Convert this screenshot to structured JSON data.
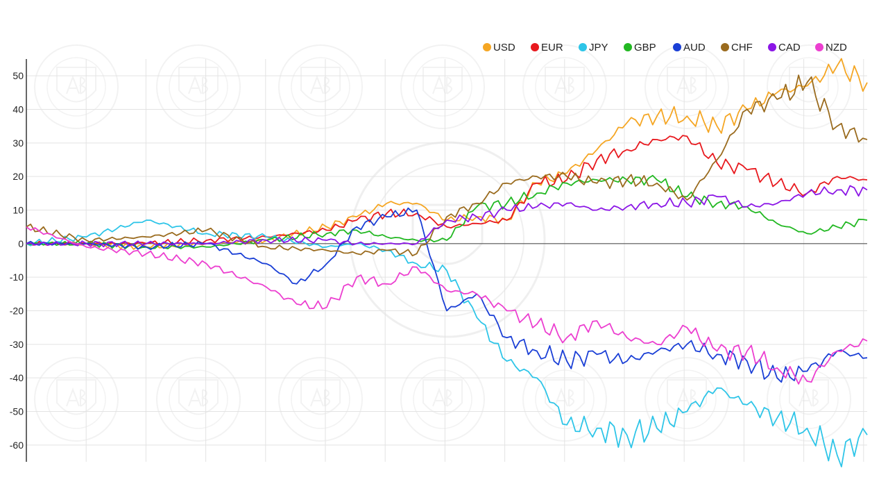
{
  "chart_data": {
    "type": "line",
    "title": "",
    "xlabel": "",
    "ylabel": "",
    "ylim": [
      -65,
      55
    ],
    "xlim": [
      0,
      140
    ],
    "grid": true,
    "legend_position": "top-right",
    "y_ticks": [
      50,
      40,
      30,
      20,
      10,
      0,
      -10,
      -20,
      -30,
      -40,
      -50,
      -60
    ],
    "series": [
      {
        "name": "USD",
        "color": "#f5a623",
        "points": [
          [
            0,
            0
          ],
          [
            10,
            0
          ],
          [
            20,
            -1
          ],
          [
            30,
            0
          ],
          [
            40,
            1
          ],
          [
            50,
            5
          ],
          [
            55,
            8
          ],
          [
            60,
            12
          ],
          [
            65,
            12
          ],
          [
            70,
            7
          ],
          [
            75,
            8
          ],
          [
            80,
            7
          ],
          [
            85,
            18
          ],
          [
            90,
            21
          ],
          [
            95,
            28
          ],
          [
            100,
            36
          ],
          [
            105,
            38
          ],
          [
            110,
            38
          ],
          [
            115,
            35
          ],
          [
            120,
            40
          ],
          [
            125,
            45
          ],
          [
            130,
            47
          ],
          [
            135,
            53
          ],
          [
            140,
            48
          ]
        ]
      },
      {
        "name": "EUR",
        "color": "#e8191e",
        "points": [
          [
            0,
            0
          ],
          [
            10,
            0
          ],
          [
            20,
            0
          ],
          [
            30,
            1
          ],
          [
            40,
            2
          ],
          [
            50,
            4
          ],
          [
            55,
            7
          ],
          [
            60,
            9
          ],
          [
            65,
            9
          ],
          [
            70,
            5
          ],
          [
            75,
            6
          ],
          [
            80,
            7
          ],
          [
            85,
            18
          ],
          [
            90,
            19
          ],
          [
            95,
            25
          ],
          [
            100,
            28
          ],
          [
            105,
            31
          ],
          [
            110,
            32
          ],
          [
            115,
            24
          ],
          [
            120,
            22
          ],
          [
            125,
            18
          ],
          [
            130,
            15
          ],
          [
            135,
            20
          ],
          [
            140,
            19
          ]
        ]
      },
      {
        "name": "JPY",
        "color": "#2ec5e8",
        "points": [
          [
            0,
            0
          ],
          [
            10,
            2
          ],
          [
            20,
            7
          ],
          [
            30,
            3
          ],
          [
            40,
            2
          ],
          [
            50,
            -1
          ],
          [
            55,
            0
          ],
          [
            60,
            -2
          ],
          [
            65,
            -6
          ],
          [
            70,
            -8
          ],
          [
            75,
            -22
          ],
          [
            80,
            -35
          ],
          [
            85,
            -40
          ],
          [
            90,
            -54
          ],
          [
            95,
            -55
          ],
          [
            100,
            -57
          ],
          [
            105,
            -55
          ],
          [
            110,
            -50
          ],
          [
            115,
            -43
          ],
          [
            120,
            -48
          ],
          [
            125,
            -52
          ],
          [
            130,
            -55
          ],
          [
            135,
            -63
          ],
          [
            140,
            -57
          ]
        ]
      },
      {
        "name": "GBP",
        "color": "#22b822",
        "points": [
          [
            0,
            0
          ],
          [
            10,
            0
          ],
          [
            20,
            -1
          ],
          [
            30,
            -1
          ],
          [
            40,
            1
          ],
          [
            50,
            3
          ],
          [
            55,
            4
          ],
          [
            60,
            2
          ],
          [
            65,
            1
          ],
          [
            70,
            1
          ],
          [
            75,
            11
          ],
          [
            80,
            12
          ],
          [
            85,
            15
          ],
          [
            90,
            18
          ],
          [
            95,
            19
          ],
          [
            100,
            19
          ],
          [
            105,
            19
          ],
          [
            110,
            14
          ],
          [
            115,
            12
          ],
          [
            120,
            11
          ],
          [
            125,
            6
          ],
          [
            130,
            3
          ],
          [
            135,
            5
          ],
          [
            140,
            7
          ]
        ]
      },
      {
        "name": "AUD",
        "color": "#1a3fd6",
        "points": [
          [
            0,
            0
          ],
          [
            10,
            0
          ],
          [
            20,
            -1
          ],
          [
            30,
            0
          ],
          [
            40,
            -6
          ],
          [
            45,
            -12
          ],
          [
            50,
            -6
          ],
          [
            55,
            5
          ],
          [
            60,
            8
          ],
          [
            65,
            10
          ],
          [
            70,
            -20
          ],
          [
            75,
            -15
          ],
          [
            80,
            -28
          ],
          [
            85,
            -32
          ],
          [
            90,
            -35
          ],
          [
            95,
            -33
          ],
          [
            100,
            -35
          ],
          [
            105,
            -32
          ],
          [
            110,
            -30
          ],
          [
            115,
            -33
          ],
          [
            120,
            -35
          ],
          [
            125,
            -40
          ],
          [
            130,
            -38
          ],
          [
            135,
            -32
          ],
          [
            140,
            -34
          ]
        ]
      },
      {
        "name": "CHF",
        "color": "#9a6b1e",
        "points": [
          [
            0,
            5
          ],
          [
            10,
            1
          ],
          [
            20,
            2
          ],
          [
            30,
            4
          ],
          [
            40,
            -1
          ],
          [
            50,
            -2
          ],
          [
            55,
            -3
          ],
          [
            60,
            -2
          ],
          [
            65,
            -3
          ],
          [
            70,
            8
          ],
          [
            75,
            12
          ],
          [
            80,
            18
          ],
          [
            85,
            20
          ],
          [
            90,
            20
          ],
          [
            95,
            18
          ],
          [
            100,
            19
          ],
          [
            105,
            18
          ],
          [
            110,
            13
          ],
          [
            115,
            25
          ],
          [
            120,
            40
          ],
          [
            125,
            43
          ],
          [
            130,
            48
          ],
          [
            135,
            35
          ],
          [
            140,
            31
          ]
        ]
      },
      {
        "name": "CAD",
        "color": "#8b16e6",
        "points": [
          [
            0,
            0
          ],
          [
            10,
            0
          ],
          [
            20,
            0
          ],
          [
            30,
            0
          ],
          [
            40,
            1
          ],
          [
            50,
            1
          ],
          [
            55,
            0
          ],
          [
            60,
            0
          ],
          [
            65,
            0
          ],
          [
            70,
            7
          ],
          [
            75,
            8
          ],
          [
            80,
            10
          ],
          [
            85,
            11
          ],
          [
            90,
            12
          ],
          [
            95,
            10
          ],
          [
            100,
            11
          ],
          [
            105,
            12
          ],
          [
            110,
            12
          ],
          [
            115,
            14
          ],
          [
            120,
            11
          ],
          [
            125,
            12
          ],
          [
            130,
            15
          ],
          [
            135,
            16
          ],
          [
            140,
            16
          ]
        ]
      },
      {
        "name": "NZD",
        "color": "#ec3fd0",
        "points": [
          [
            0,
            5
          ],
          [
            10,
            -1
          ],
          [
            20,
            -3
          ],
          [
            30,
            -6
          ],
          [
            40,
            -13
          ],
          [
            45,
            -18
          ],
          [
            50,
            -19
          ],
          [
            55,
            -10
          ],
          [
            60,
            -12
          ],
          [
            65,
            -7
          ],
          [
            70,
            -14
          ],
          [
            75,
            -15
          ],
          [
            80,
            -20
          ],
          [
            85,
            -24
          ],
          [
            90,
            -28
          ],
          [
            95,
            -23
          ],
          [
            100,
            -28
          ],
          [
            105,
            -30
          ],
          [
            110,
            -25
          ],
          [
            115,
            -32
          ],
          [
            120,
            -32
          ],
          [
            125,
            -37
          ],
          [
            130,
            -41
          ],
          [
            135,
            -32
          ],
          [
            140,
            -29
          ]
        ]
      }
    ]
  }
}
